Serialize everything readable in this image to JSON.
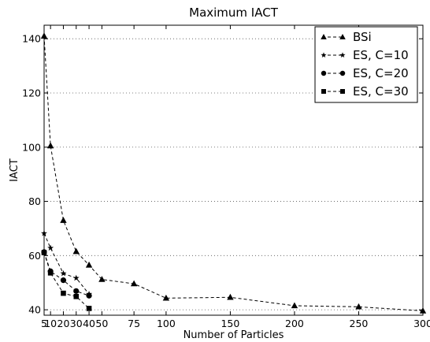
{
  "chart_data": {
    "type": "line",
    "title": "Maximum IACT",
    "xlabel": "Number of Particles",
    "ylabel": "IACT",
    "xlim": [
      5,
      300
    ],
    "ylim": [
      38,
      145
    ],
    "x_ticks": [
      5,
      10,
      20,
      30,
      40,
      50,
      75,
      100,
      150,
      200,
      250,
      300
    ],
    "y_ticks": [
      40,
      60,
      80,
      100,
      120,
      140
    ],
    "grid": "horizontal dotted",
    "legend_position": "top-right",
    "series": [
      {
        "name": "BSi",
        "marker": "triangle",
        "x": [
          5,
          10,
          20,
          30,
          40,
          50,
          75,
          100,
          150,
          200,
          250,
          300
        ],
        "y": [
          141,
          100.5,
          73,
          61.5,
          56.5,
          51.2,
          49.6,
          44.3,
          44.6,
          41.5,
          41.1,
          39.6
        ]
      },
      {
        "name": "ES, C=10",
        "marker": "star",
        "x": [
          5,
          10,
          20,
          30,
          40
        ],
        "y": [
          68.2,
          62.8,
          53.4,
          51.7,
          45.8
        ]
      },
      {
        "name": "ES, C=20",
        "marker": "circle",
        "x": [
          5,
          10,
          20,
          30,
          40
        ],
        "y": [
          61.3,
          54.2,
          50.9,
          46.9,
          45.2
        ]
      },
      {
        "name": "ES, C=30",
        "marker": "square",
        "x": [
          5,
          10,
          20,
          30,
          40
        ],
        "y": [
          61.1,
          53.6,
          46.1,
          44.9,
          40.5
        ]
      }
    ]
  }
}
